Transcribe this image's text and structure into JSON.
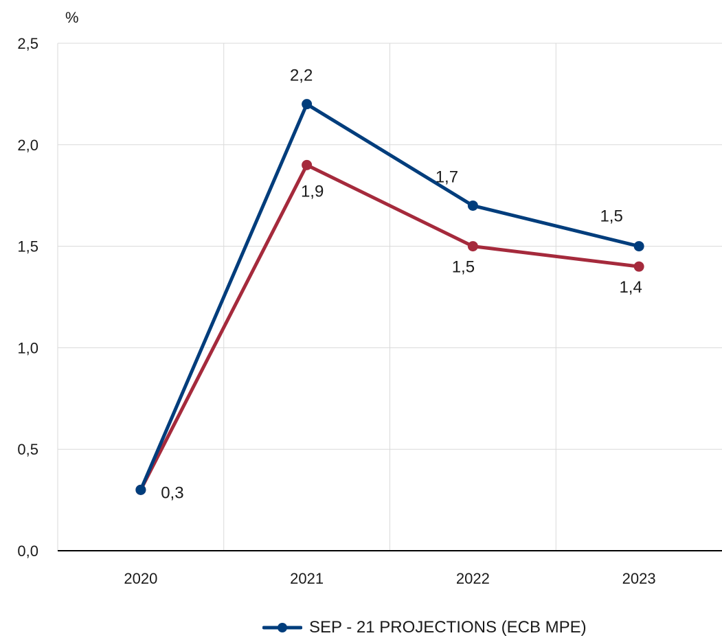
{
  "chart_data": {
    "type": "line",
    "unit_label": "%",
    "categories": [
      "2020",
      "2021",
      "2022",
      "2023"
    ],
    "ylim": [
      0,
      2.5
    ],
    "yticks": [
      "0,0",
      "0,5",
      "1,0",
      "1,5",
      "2,0",
      "2,5"
    ],
    "grid": true,
    "legend_position": "bottom",
    "series": [
      {
        "name": "SEP - 21 PROJECTIONS (ECB MPE)",
        "color": "#003d7c",
        "values": [
          0.3,
          2.2,
          1.7,
          1.5
        ],
        "labels": [
          "",
          "2,2",
          "1,7",
          "1,5"
        ]
      },
      {
        "color": "#a52a3c",
        "values": [
          0.3,
          1.9,
          1.5,
          1.4
        ],
        "labels": [
          "0,3",
          "1,9",
          "1,5",
          "1,4"
        ]
      }
    ]
  }
}
